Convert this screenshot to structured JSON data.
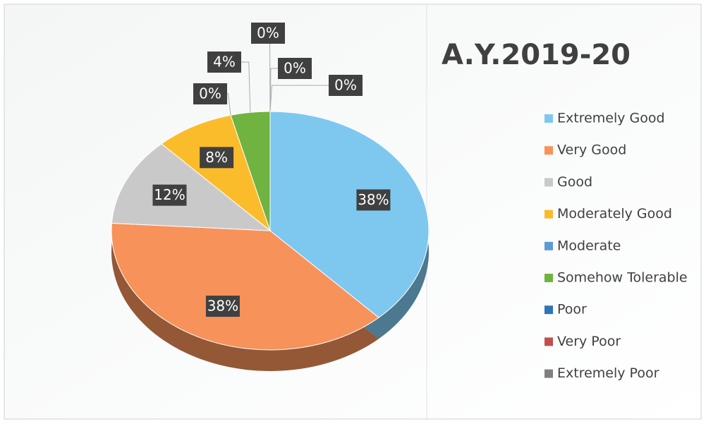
{
  "chart_data": {
    "type": "pie",
    "title": "A.Y.2019-20",
    "categories": [
      "Extremely Good",
      "Very Good",
      "Good",
      "Moderately Good",
      "Moderate",
      "Somehow Tolerable",
      "Poor",
      "Very Poor",
      "Extremely Poor"
    ],
    "values": [
      38,
      38,
      12,
      8,
      0,
      4,
      0,
      0,
      0
    ],
    "value_labels": [
      "38%",
      "38%",
      "12%",
      "8%",
      "0%",
      "4%",
      "0%",
      "0%",
      "0%"
    ],
    "colors": [
      "#7ec8f0",
      "#f7925a",
      "#c9c9c9",
      "#fbbc2c",
      "#5b9bd5",
      "#70b340",
      "#2e75b6",
      "#c0504d",
      "#7f7f7f"
    ],
    "legend": "right"
  }
}
